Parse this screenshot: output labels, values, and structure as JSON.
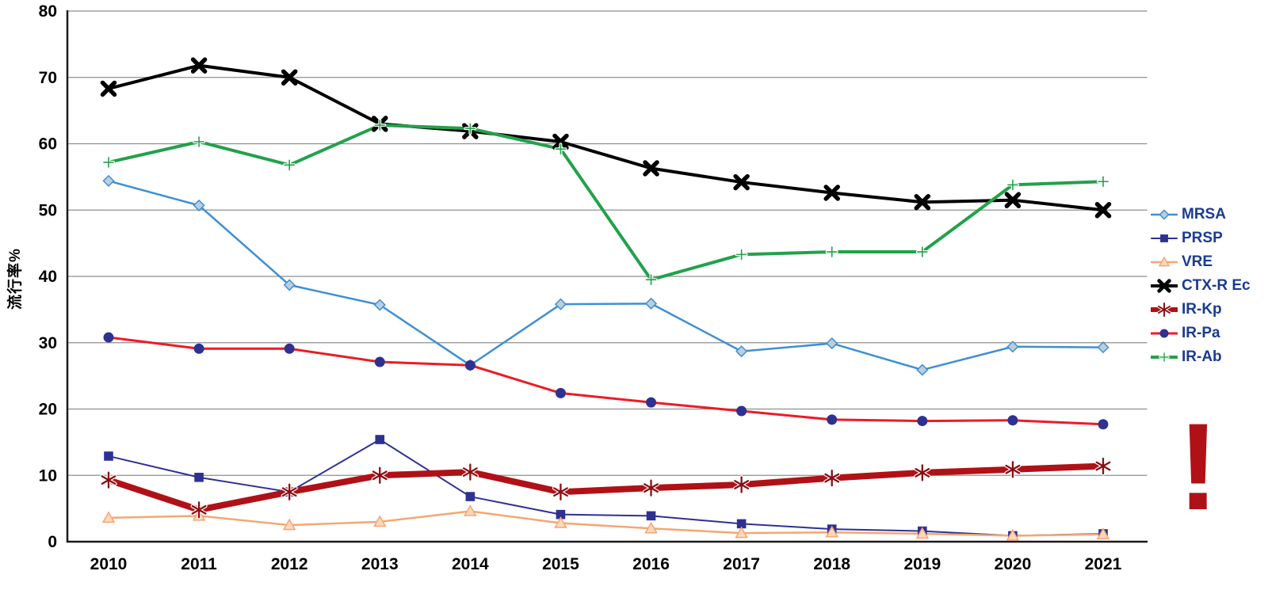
{
  "chart_data": {
    "type": "line",
    "title": "",
    "xlabel": "",
    "ylabel": "流行率%",
    "ylim": [
      0,
      80
    ],
    "ytick_step": 10,
    "grid": true,
    "legend_position": "right",
    "axis_text_color": "#000000",
    "legend_text_color": "#1b3a91",
    "categories": [
      "2010",
      "2011",
      "2012",
      "2013",
      "2014",
      "2015",
      "2016",
      "2017",
      "2018",
      "2019",
      "2020",
      "2021"
    ],
    "series": [
      {
        "name": "MRSA",
        "color": "#3f8fd2",
        "marker": "diamond",
        "marker_fill": "#b9cfdf",
        "line_width": 2.5,
        "values": [
          54.4,
          50.7,
          38.7,
          35.7,
          26.6,
          35.8,
          35.9,
          28.7,
          29.9,
          25.9,
          29.4,
          29.3
        ]
      },
      {
        "name": "PRSP",
        "color": "#2e3192",
        "marker": "square",
        "marker_fill": "#2e3192",
        "line_width": 2,
        "values": [
          12.9,
          9.7,
          7.5,
          15.4,
          6.8,
          4.1,
          3.9,
          2.7,
          1.9,
          1.6,
          0.9,
          1.2
        ]
      },
      {
        "name": "VRE",
        "color": "#f5a673",
        "marker": "triangle",
        "marker_fill": "#fbd9bb",
        "line_width": 2.5,
        "values": [
          3.6,
          3.9,
          2.5,
          3.0,
          4.6,
          2.8,
          2.0,
          1.3,
          1.4,
          1.2,
          0.9,
          1.1
        ]
      },
      {
        "name": "CTX-R Ec",
        "color": "#000000",
        "marker": "x",
        "marker_fill": "#000000",
        "line_width": 4,
        "values": [
          68.3,
          71.8,
          70.0,
          63.0,
          61.9,
          60.3,
          56.3,
          54.2,
          52.6,
          51.2,
          51.5,
          50.0
        ]
      },
      {
        "name": "IR-Kp",
        "color": "#b01117",
        "marker": "asterisk",
        "marker_fill": "#8a0d12",
        "line_width": 8,
        "values": [
          9.3,
          4.8,
          7.5,
          10.0,
          10.5,
          7.5,
          8.1,
          8.6,
          9.6,
          10.4,
          10.9,
          11.4
        ]
      },
      {
        "name": "IR-Pa",
        "color": "#ec1c24",
        "marker": "circle",
        "marker_fill": "#2e3192",
        "line_width": 3,
        "values": [
          30.8,
          29.1,
          29.1,
          27.1,
          26.6,
          22.4,
          21.0,
          19.7,
          18.4,
          18.2,
          18.3,
          17.7
        ]
      },
      {
        "name": "IR-Ab",
        "color": "#22a14b",
        "marker": "plus",
        "marker_fill": "#eaf5ec",
        "line_width": 4,
        "values": [
          57.2,
          60.3,
          56.8,
          62.8,
          62.3,
          59.2,
          39.5,
          43.3,
          43.7,
          43.7,
          53.8,
          54.3
        ]
      }
    ],
    "annotation": {
      "text": "!",
      "color": "#b01117"
    }
  }
}
